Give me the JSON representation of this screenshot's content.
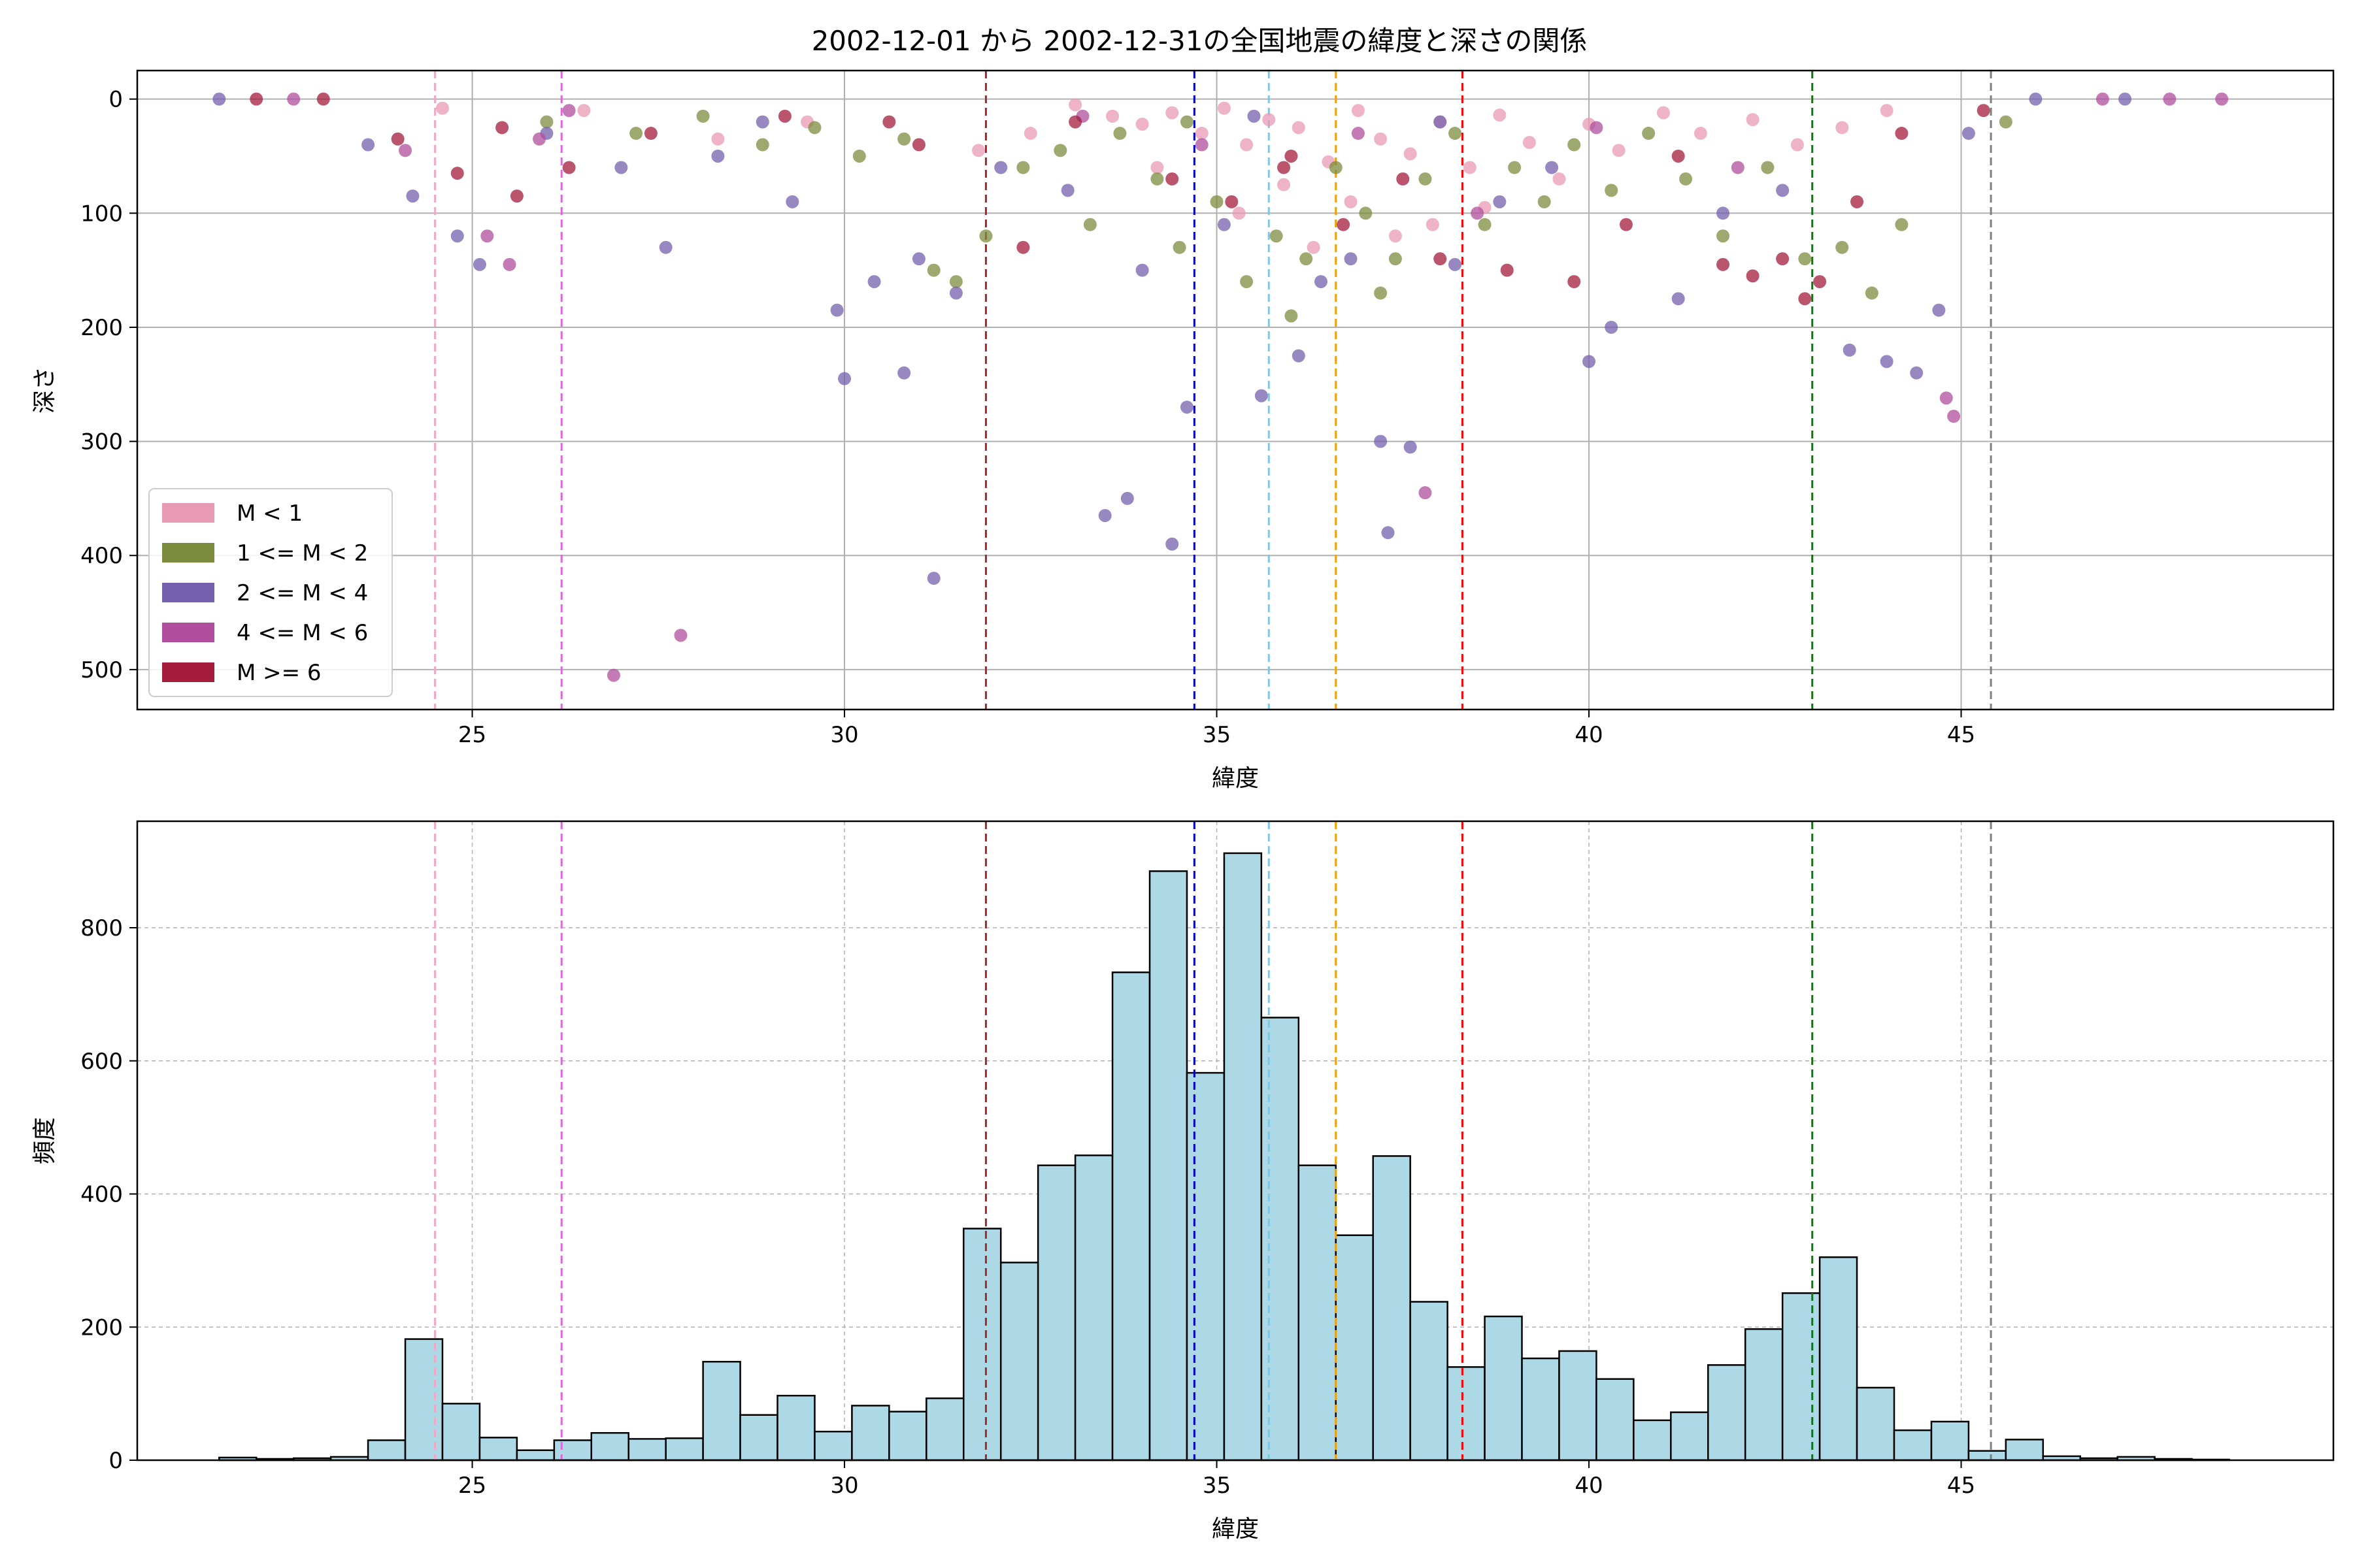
{
  "chart_data": [
    {
      "type": "scatter",
      "title": "2002-12-01 から 2002-12-31の全国地震の緯度と深さの関係",
      "xlabel": "緯度",
      "ylabel": "深さ",
      "xlim": [
        20.5,
        50.0
      ],
      "ylim": [
        535,
        -25
      ],
      "y_inverted": true,
      "grid": true,
      "legend_position": "lower-left",
      "x_ticks": [
        25,
        30,
        35,
        40,
        45
      ],
      "y_ticks": [
        0,
        100,
        200,
        300,
        400,
        500
      ],
      "reference_lines": [
        {
          "x": 24.5,
          "color": "#f4a6c6"
        },
        {
          "x": 26.2,
          "color": "#e066e0"
        },
        {
          "x": 31.9,
          "color": "#a52a2a"
        },
        {
          "x": 34.7,
          "color": "#0000cc"
        },
        {
          "x": 35.7,
          "color": "#7ec8e3"
        },
        {
          "x": 36.6,
          "color": "#f0a000"
        },
        {
          "x": 38.3,
          "color": "#ff0000"
        },
        {
          "x": 43.0,
          "color": "#008000"
        },
        {
          "x": 45.4,
          "color": "#808080"
        }
      ],
      "series": [
        {
          "name": "M < 1",
          "color": "#e89ab4",
          "points": [
            [
              33.1,
              5
            ],
            [
              33.6,
              15
            ],
            [
              34.0,
              22
            ],
            [
              34.4,
              12
            ],
            [
              34.8,
              30
            ],
            [
              35.1,
              8
            ],
            [
              35.4,
              40
            ],
            [
              35.7,
              18
            ],
            [
              36.1,
              25
            ],
            [
              36.5,
              55
            ],
            [
              36.9,
              10
            ],
            [
              37.2,
              35
            ],
            [
              37.6,
              48
            ],
            [
              38.0,
              20
            ],
            [
              38.4,
              60
            ],
            [
              38.8,
              14
            ],
            [
              39.2,
              38
            ],
            [
              39.6,
              70
            ],
            [
              40.0,
              22
            ],
            [
              40.4,
              45
            ],
            [
              41.0,
              12
            ],
            [
              41.5,
              30
            ],
            [
              42.2,
              18
            ],
            [
              42.8,
              40
            ],
            [
              43.4,
              25
            ],
            [
              44.0,
              10
            ],
            [
              34.2,
              60
            ],
            [
              35.9,
              75
            ],
            [
              36.8,
              90
            ],
            [
              37.9,
              110
            ],
            [
              38.6,
              95
            ],
            [
              32.5,
              30
            ],
            [
              31.8,
              45
            ],
            [
              29.5,
              20
            ],
            [
              28.3,
              35
            ],
            [
              26.5,
              10
            ],
            [
              24.6,
              8
            ],
            [
              35.3,
              100
            ],
            [
              36.3,
              130
            ],
            [
              37.4,
              120
            ]
          ]
        },
        {
          "name": "1 <= M < 2",
          "color": "#7c8c3e",
          "points": [
            [
              26.0,
              20
            ],
            [
              27.2,
              30
            ],
            [
              28.1,
              15
            ],
            [
              28.9,
              40
            ],
            [
              29.6,
              25
            ],
            [
              30.2,
              50
            ],
            [
              30.8,
              35
            ],
            [
              31.2,
              150
            ],
            [
              31.5,
              160
            ],
            [
              31.9,
              120
            ],
            [
              32.4,
              60
            ],
            [
              32.9,
              45
            ],
            [
              33.3,
              110
            ],
            [
              33.7,
              30
            ],
            [
              34.2,
              70
            ],
            [
              34.6,
              20
            ],
            [
              35.0,
              90
            ],
            [
              35.4,
              160
            ],
            [
              35.8,
              120
            ],
            [
              36.2,
              140
            ],
            [
              36.6,
              60
            ],
            [
              37.0,
              100
            ],
            [
              37.4,
              140
            ],
            [
              37.8,
              70
            ],
            [
              38.2,
              30
            ],
            [
              38.6,
              110
            ],
            [
              39.0,
              60
            ],
            [
              39.4,
              90
            ],
            [
              39.8,
              40
            ],
            [
              40.3,
              80
            ],
            [
              40.8,
              30
            ],
            [
              41.3,
              70
            ],
            [
              41.8,
              120
            ],
            [
              42.4,
              60
            ],
            [
              42.9,
              140
            ],
            [
              43.4,
              130
            ],
            [
              43.8,
              170
            ],
            [
              44.2,
              110
            ],
            [
              45.6,
              20
            ],
            [
              36.0,
              190
            ],
            [
              37.2,
              170
            ],
            [
              34.5,
              130
            ]
          ]
        },
        {
          "name": "2 <= M < 4",
          "color": "#7560ad",
          "points": [
            [
              21.6,
              0
            ],
            [
              23.6,
              40
            ],
            [
              24.2,
              85
            ],
            [
              24.8,
              120
            ],
            [
              25.1,
              145
            ],
            [
              26.0,
              30
            ],
            [
              27.0,
              60
            ],
            [
              27.6,
              130
            ],
            [
              28.3,
              50
            ],
            [
              28.9,
              20
            ],
            [
              29.3,
              90
            ],
            [
              29.9,
              185
            ],
            [
              30.0,
              245
            ],
            [
              30.4,
              160
            ],
            [
              30.8,
              240
            ],
            [
              31.0,
              140
            ],
            [
              31.2,
              420
            ],
            [
              31.5,
              170
            ],
            [
              32.1,
              60
            ],
            [
              33.0,
              80
            ],
            [
              33.5,
              365
            ],
            [
              33.8,
              350
            ],
            [
              34.0,
              150
            ],
            [
              34.4,
              390
            ],
            [
              34.6,
              270
            ],
            [
              35.1,
              110
            ],
            [
              35.6,
              260
            ],
            [
              36.1,
              225
            ],
            [
              36.4,
              160
            ],
            [
              36.8,
              140
            ],
            [
              37.2,
              300
            ],
            [
              37.3,
              380
            ],
            [
              37.6,
              305
            ],
            [
              38.2,
              145
            ],
            [
              38.8,
              90
            ],
            [
              39.5,
              60
            ],
            [
              40.0,
              230
            ],
            [
              40.3,
              200
            ],
            [
              41.2,
              175
            ],
            [
              41.8,
              100
            ],
            [
              42.6,
              80
            ],
            [
              43.5,
              220
            ],
            [
              44.0,
              230
            ],
            [
              44.4,
              240
            ],
            [
              44.7,
              185
            ],
            [
              45.1,
              30
            ],
            [
              46.0,
              0
            ],
            [
              47.2,
              0
            ],
            [
              38.0,
              20
            ],
            [
              35.5,
              15
            ]
          ]
        },
        {
          "name": "4 <= M < 6",
          "color": "#b04d9c",
          "points": [
            [
              22.6,
              0
            ],
            [
              24.1,
              45
            ],
            [
              25.2,
              120
            ],
            [
              25.5,
              145
            ],
            [
              25.9,
              35
            ],
            [
              26.9,
              505
            ],
            [
              27.8,
              470
            ],
            [
              34.8,
              40
            ],
            [
              36.9,
              30
            ],
            [
              37.8,
              345
            ],
            [
              38.5,
              100
            ],
            [
              40.1,
              25
            ],
            [
              42.0,
              60
            ],
            [
              44.8,
              262
            ],
            [
              44.9,
              278
            ],
            [
              46.9,
              0
            ],
            [
              47.8,
              0
            ],
            [
              48.5,
              0
            ],
            [
              26.3,
              10
            ],
            [
              33.2,
              15
            ]
          ]
        },
        {
          "name": "M >= 6",
          "color": "#a31c3c",
          "points": [
            [
              22.1,
              0
            ],
            [
              23.0,
              0
            ],
            [
              24.0,
              35
            ],
            [
              24.8,
              65
            ],
            [
              25.4,
              25
            ],
            [
              25.6,
              85
            ],
            [
              26.3,
              60
            ],
            [
              27.4,
              30
            ],
            [
              29.2,
              15
            ],
            [
              31.0,
              40
            ],
            [
              32.4,
              130
            ],
            [
              33.1,
              20
            ],
            [
              34.4,
              70
            ],
            [
              35.2,
              90
            ],
            [
              36.0,
              50
            ],
            [
              36.7,
              110
            ],
            [
              37.5,
              70
            ],
            [
              38.0,
              140
            ],
            [
              38.9,
              150
            ],
            [
              39.8,
              160
            ],
            [
              40.5,
              110
            ],
            [
              41.2,
              50
            ],
            [
              41.8,
              145
            ],
            [
              42.2,
              155
            ],
            [
              42.6,
              140
            ],
            [
              42.9,
              175
            ],
            [
              43.1,
              160
            ],
            [
              43.6,
              90
            ],
            [
              44.2,
              30
            ],
            [
              45.3,
              10
            ],
            [
              30.6,
              20
            ],
            [
              35.9,
              60
            ]
          ]
        }
      ]
    },
    {
      "type": "bar",
      "subtype": "histogram",
      "title": "",
      "xlabel": "緯度",
      "ylabel": "頻度",
      "xlim": [
        20.5,
        50.0
      ],
      "ylim": [
        0,
        960
      ],
      "x_ticks": [
        25,
        30,
        35,
        40,
        45
      ],
      "y_ticks": [
        0,
        200,
        400,
        600,
        800
      ],
      "grid": true,
      "bar_color": "#add8e6",
      "edge_color": "#000000",
      "bin_start": 21.6,
      "bin_width": 0.5,
      "values": [
        4,
        2,
        3,
        5,
        30,
        182,
        85,
        34,
        15,
        30,
        41,
        32,
        33,
        148,
        68,
        97,
        43,
        82,
        73,
        93,
        348,
        297,
        443,
        458,
        733,
        885,
        582,
        912,
        665,
        443,
        338,
        457,
        238,
        140,
        216,
        153,
        164,
        122,
        60,
        72,
        143,
        197,
        251,
        305,
        109,
        45,
        58,
        14,
        31,
        6,
        3,
        5,
        2,
        1
      ],
      "reference_lines": [
        {
          "x": 24.5,
          "color": "#f4a6c6"
        },
        {
          "x": 26.2,
          "color": "#e066e0"
        },
        {
          "x": 31.9,
          "color": "#a52a2a"
        },
        {
          "x": 34.7,
          "color": "#0000cc"
        },
        {
          "x": 35.7,
          "color": "#7ec8e3"
        },
        {
          "x": 36.6,
          "color": "#f0a000"
        },
        {
          "x": 38.3,
          "color": "#ff0000"
        },
        {
          "x": 43.0,
          "color": "#008000"
        },
        {
          "x": 45.4,
          "color": "#808080"
        }
      ]
    }
  ]
}
